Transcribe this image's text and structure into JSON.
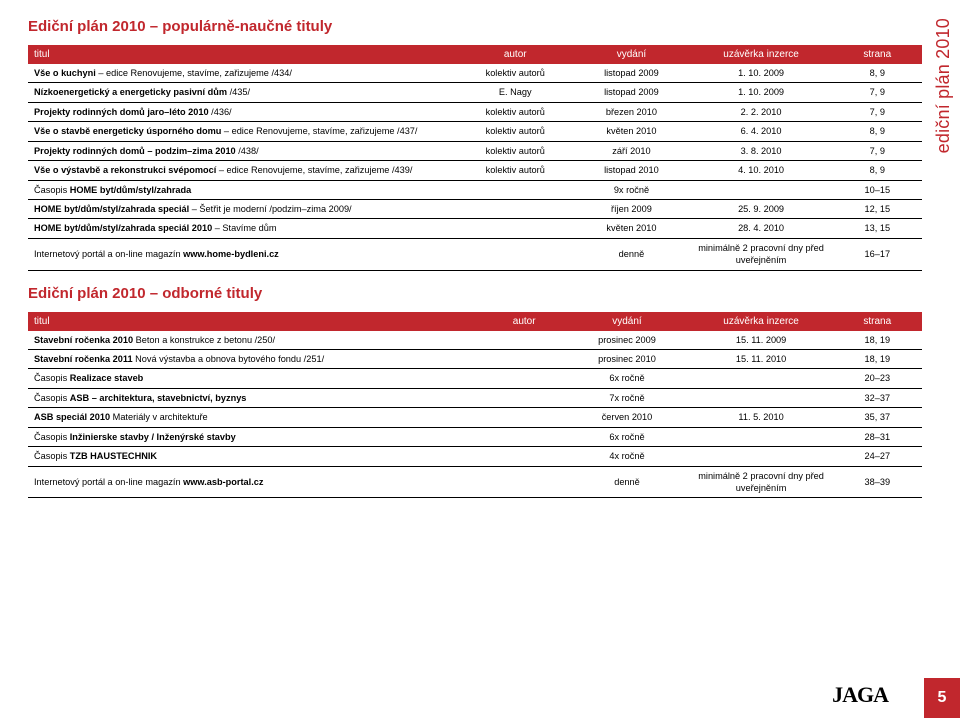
{
  "vertical_label": "ediční plán 2010",
  "logo_text": "JAGA",
  "page_number": "5",
  "sectionA": {
    "title": "Ediční plán 2010 – populárně-naučné tituly",
    "headers": [
      "titul",
      "autor",
      "vydání",
      "uzávěrka inzerce",
      "strana"
    ],
    "rows": [
      {
        "t": "<b>Vše o kuchyni</b> – edice Renovujeme, stavíme, zařizujeme /434/",
        "a": "kolektiv autorů",
        "v": "listopad 2009",
        "u": "1. 10. 2009",
        "s": "8, 9"
      },
      {
        "t": "<b>Nízkoenergetický a energeticky pasivní dům</b> /435/",
        "a": "E. Nagy",
        "v": "listopad 2009",
        "u": "1. 10. 2009",
        "s": "7, 9"
      },
      {
        "t": "<b>Projekty rodinných domů jaro–léto 2010</b> /436/",
        "a": "kolektiv autorů",
        "v": "březen 2010",
        "u": "2. 2. 2010",
        "s": "7, 9"
      },
      {
        "t": "<b>Vše o stavbě energeticky úsporného domu</b> – edice Renovujeme, stavíme, zařizujeme /437/",
        "a": "kolektiv autorů",
        "v": "květen 2010",
        "u": "6. 4. 2010",
        "s": "8, 9"
      },
      {
        "t": "<b>Projekty rodinných domů – podzim–zima 2010</b> /438/",
        "a": "kolektiv autorů",
        "v": "září 2010",
        "u": "3. 8. 2010",
        "s": "7, 9"
      },
      {
        "t": "<b>Vše o výstavbě a rekonstrukci svépomocí</b> – edice Renovujeme, stavíme, zařizujeme /439/",
        "a": "kolektiv autorů",
        "v": "listopad 2010",
        "u": "4. 10. 2010",
        "s": "8, 9"
      },
      {
        "t": "Časopis <b>HOME byt/dům/styl/zahrada</b>",
        "a": "",
        "v": "9x ročně",
        "u": "",
        "s": "10–15"
      },
      {
        "t": "<b>HOME byt/dům/styl/zahrada speciál</b> – Šetřit je moderní /podzim–zima 2009/",
        "a": "",
        "v": "říjen 2009",
        "u": "25. 9. 2009",
        "s": "12, 15"
      },
      {
        "t": "<b>HOME byt/dům/styl/zahrada speciál 2010</b> – Stavíme dům",
        "a": "",
        "v": "květen 2010",
        "u": "28. 4. 2010",
        "s": "13, 15"
      },
      {
        "t": "Internetový portál a on-line magazín <b>www.home-bydleni.cz</b>",
        "a": "",
        "v": "denně",
        "u": "minimálně 2 pracovní dny před uveřejněním",
        "s": "16–17"
      }
    ]
  },
  "sectionB": {
    "title": "Ediční plán 2010 – odborné tituly",
    "headers": [
      "titul",
      "autor",
      "vydání",
      "uzávěrka inzerce",
      "strana"
    ],
    "rows": [
      {
        "t": "<b>Stavební ročenka 2010</b> Beton a konstrukce z betonu /250/",
        "a": "",
        "v": "prosinec 2009",
        "u": "15. 11. 2009",
        "s": "18, 19"
      },
      {
        "t": "<b>Stavební ročenka 2011</b> Nová výstavba a obnova bytového fondu /251/",
        "a": "",
        "v": "prosinec 2010",
        "u": "15. 11. 2010",
        "s": "18, 19"
      },
      {
        "t": "Časopis <b>Realizace staveb</b>",
        "a": "",
        "v": "6x ročně",
        "u": "",
        "s": "20–23"
      },
      {
        "t": "Časopis <b>ASB – architektura, stavebnictví, byznys</b>",
        "a": "",
        "v": "7x ročně",
        "u": "",
        "s": "32–37"
      },
      {
        "t": "<b>ASB speciál 2010</b> Materiály v architektuře",
        "a": "",
        "v": "červen 2010",
        "u": "11. 5. 2010",
        "s": "35, 37"
      },
      {
        "t": "Časopis <b>Inžinierske stavby / Inženýrské stavby</b>",
        "a": "",
        "v": "6x ročně",
        "u": "",
        "s": "28–31"
      },
      {
        "t": "Časopis <b>TZB HAUSTECHNIK</b>",
        "a": "",
        "v": "4x ročně",
        "u": "",
        "s": "24–27"
      },
      {
        "t": "Internetový portál a on-line magazín <b>www.asb-portal.cz</b>",
        "a": "",
        "v": "denně",
        "u": "minimálně 2 pracovní dny před uveřejněním",
        "s": "38–39"
      }
    ]
  }
}
